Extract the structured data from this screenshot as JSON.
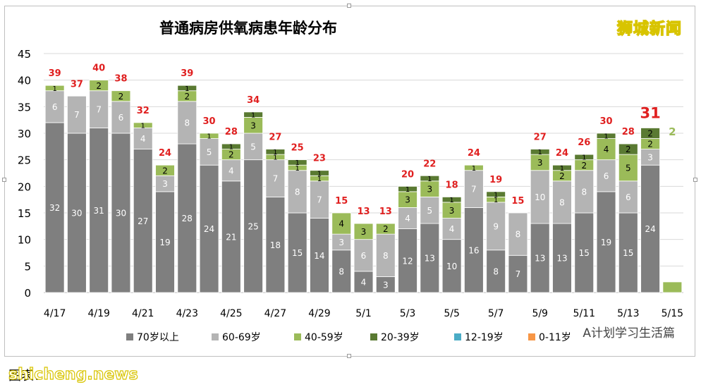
{
  "chart_data": {
    "type": "bar",
    "stacked": true,
    "title": "普通病房供氧病患年龄分布",
    "categories": [
      "4/17",
      "4/18",
      "4/19",
      "4/20",
      "4/21",
      "4/22",
      "4/23",
      "4/24",
      "4/25",
      "4/26",
      "4/27",
      "4/28",
      "4/29",
      "4/30",
      "5/1",
      "5/2",
      "5/3",
      "5/4",
      "5/5",
      "5/6",
      "5/7",
      "5/8",
      "5/9",
      "5/10",
      "5/11",
      "5/12",
      "5/13",
      "5/14",
      "5/15"
    ],
    "x_tick_labels": [
      "4/17",
      "4/19",
      "4/21",
      "4/23",
      "4/25",
      "4/27",
      "4/29",
      "5/1",
      "5/3",
      "5/5",
      "5/7",
      "5/9",
      "5/11",
      "5/13",
      "5/15"
    ],
    "ylim": [
      0,
      45
    ],
    "yticks": [
      0,
      5,
      10,
      15,
      20,
      25,
      30,
      35,
      40,
      45
    ],
    "grid": true,
    "legend_position": "bottom",
    "series": [
      {
        "name": "70岁以上",
        "color": "#7f7f7f",
        "values": [
          32,
          30,
          31,
          30,
          27,
          19,
          28,
          24,
          21,
          25,
          18,
          15,
          14,
          8,
          4,
          3,
          12,
          13,
          10,
          16,
          8,
          7,
          13,
          13,
          15,
          19,
          15,
          24,
          0
        ]
      },
      {
        "name": "60-69岁",
        "color": "#b4b4b4",
        "values": [
          6,
          7,
          7,
          6,
          4,
          3,
          8,
          5,
          4,
          5,
          7,
          8,
          7,
          3,
          6,
          8,
          4,
          5,
          4,
          7,
          9,
          8,
          10,
          8,
          8,
          6,
          6,
          3,
          0
        ]
      },
      {
        "name": "40-59岁",
        "color": "#9bbb59",
        "values": [
          1,
          0,
          2,
          2,
          1,
          2,
          2,
          1,
          2,
          3,
          1,
          1,
          1,
          4,
          3,
          2,
          3,
          3,
          3,
          1,
          1,
          0,
          3,
          2,
          2,
          4,
          5,
          2,
          2
        ]
      },
      {
        "name": "20-39岁",
        "color": "#5a7a32",
        "values": [
          0,
          0,
          0,
          0,
          0,
          0,
          1,
          0,
          1,
          1,
          1,
          1,
          1,
          0,
          0,
          0,
          1,
          1,
          1,
          0,
          1,
          0,
          1,
          1,
          1,
          1,
          2,
          2,
          0
        ]
      },
      {
        "name": "12-19岁",
        "color": "#4bacc6",
        "values": [
          0,
          0,
          0,
          0,
          0,
          0,
          0,
          0,
          0,
          0,
          0,
          0,
          0,
          0,
          0,
          0,
          0,
          0,
          0,
          0,
          0,
          0,
          0,
          0,
          0,
          0,
          0,
          0,
          0
        ]
      },
      {
        "name": "0-11岁",
        "color": "#f79646",
        "values": [
          0,
          0,
          0,
          0,
          0,
          0,
          0,
          0,
          0,
          0,
          0,
          0,
          0,
          0,
          0,
          0,
          0,
          0,
          0,
          0,
          0,
          0,
          0,
          0,
          0,
          0,
          0,
          0,
          0
        ]
      }
    ],
    "totals": [
      39,
      37,
      40,
      38,
      32,
      24,
      39,
      30,
      28,
      34,
      27,
      25,
      23,
      15,
      13,
      13,
      20,
      22,
      18,
      24,
      19,
      15,
      27,
      24,
      26,
      30,
      28,
      31,
      2
    ],
    "total_color": "#e02020"
  },
  "watermarks": {
    "top_right": "狮城新闻",
    "bottom_left_cn": "图表：",
    "bottom_left_en": "shicheng.news",
    "bottom_right": "A计划学习生活篇"
  }
}
